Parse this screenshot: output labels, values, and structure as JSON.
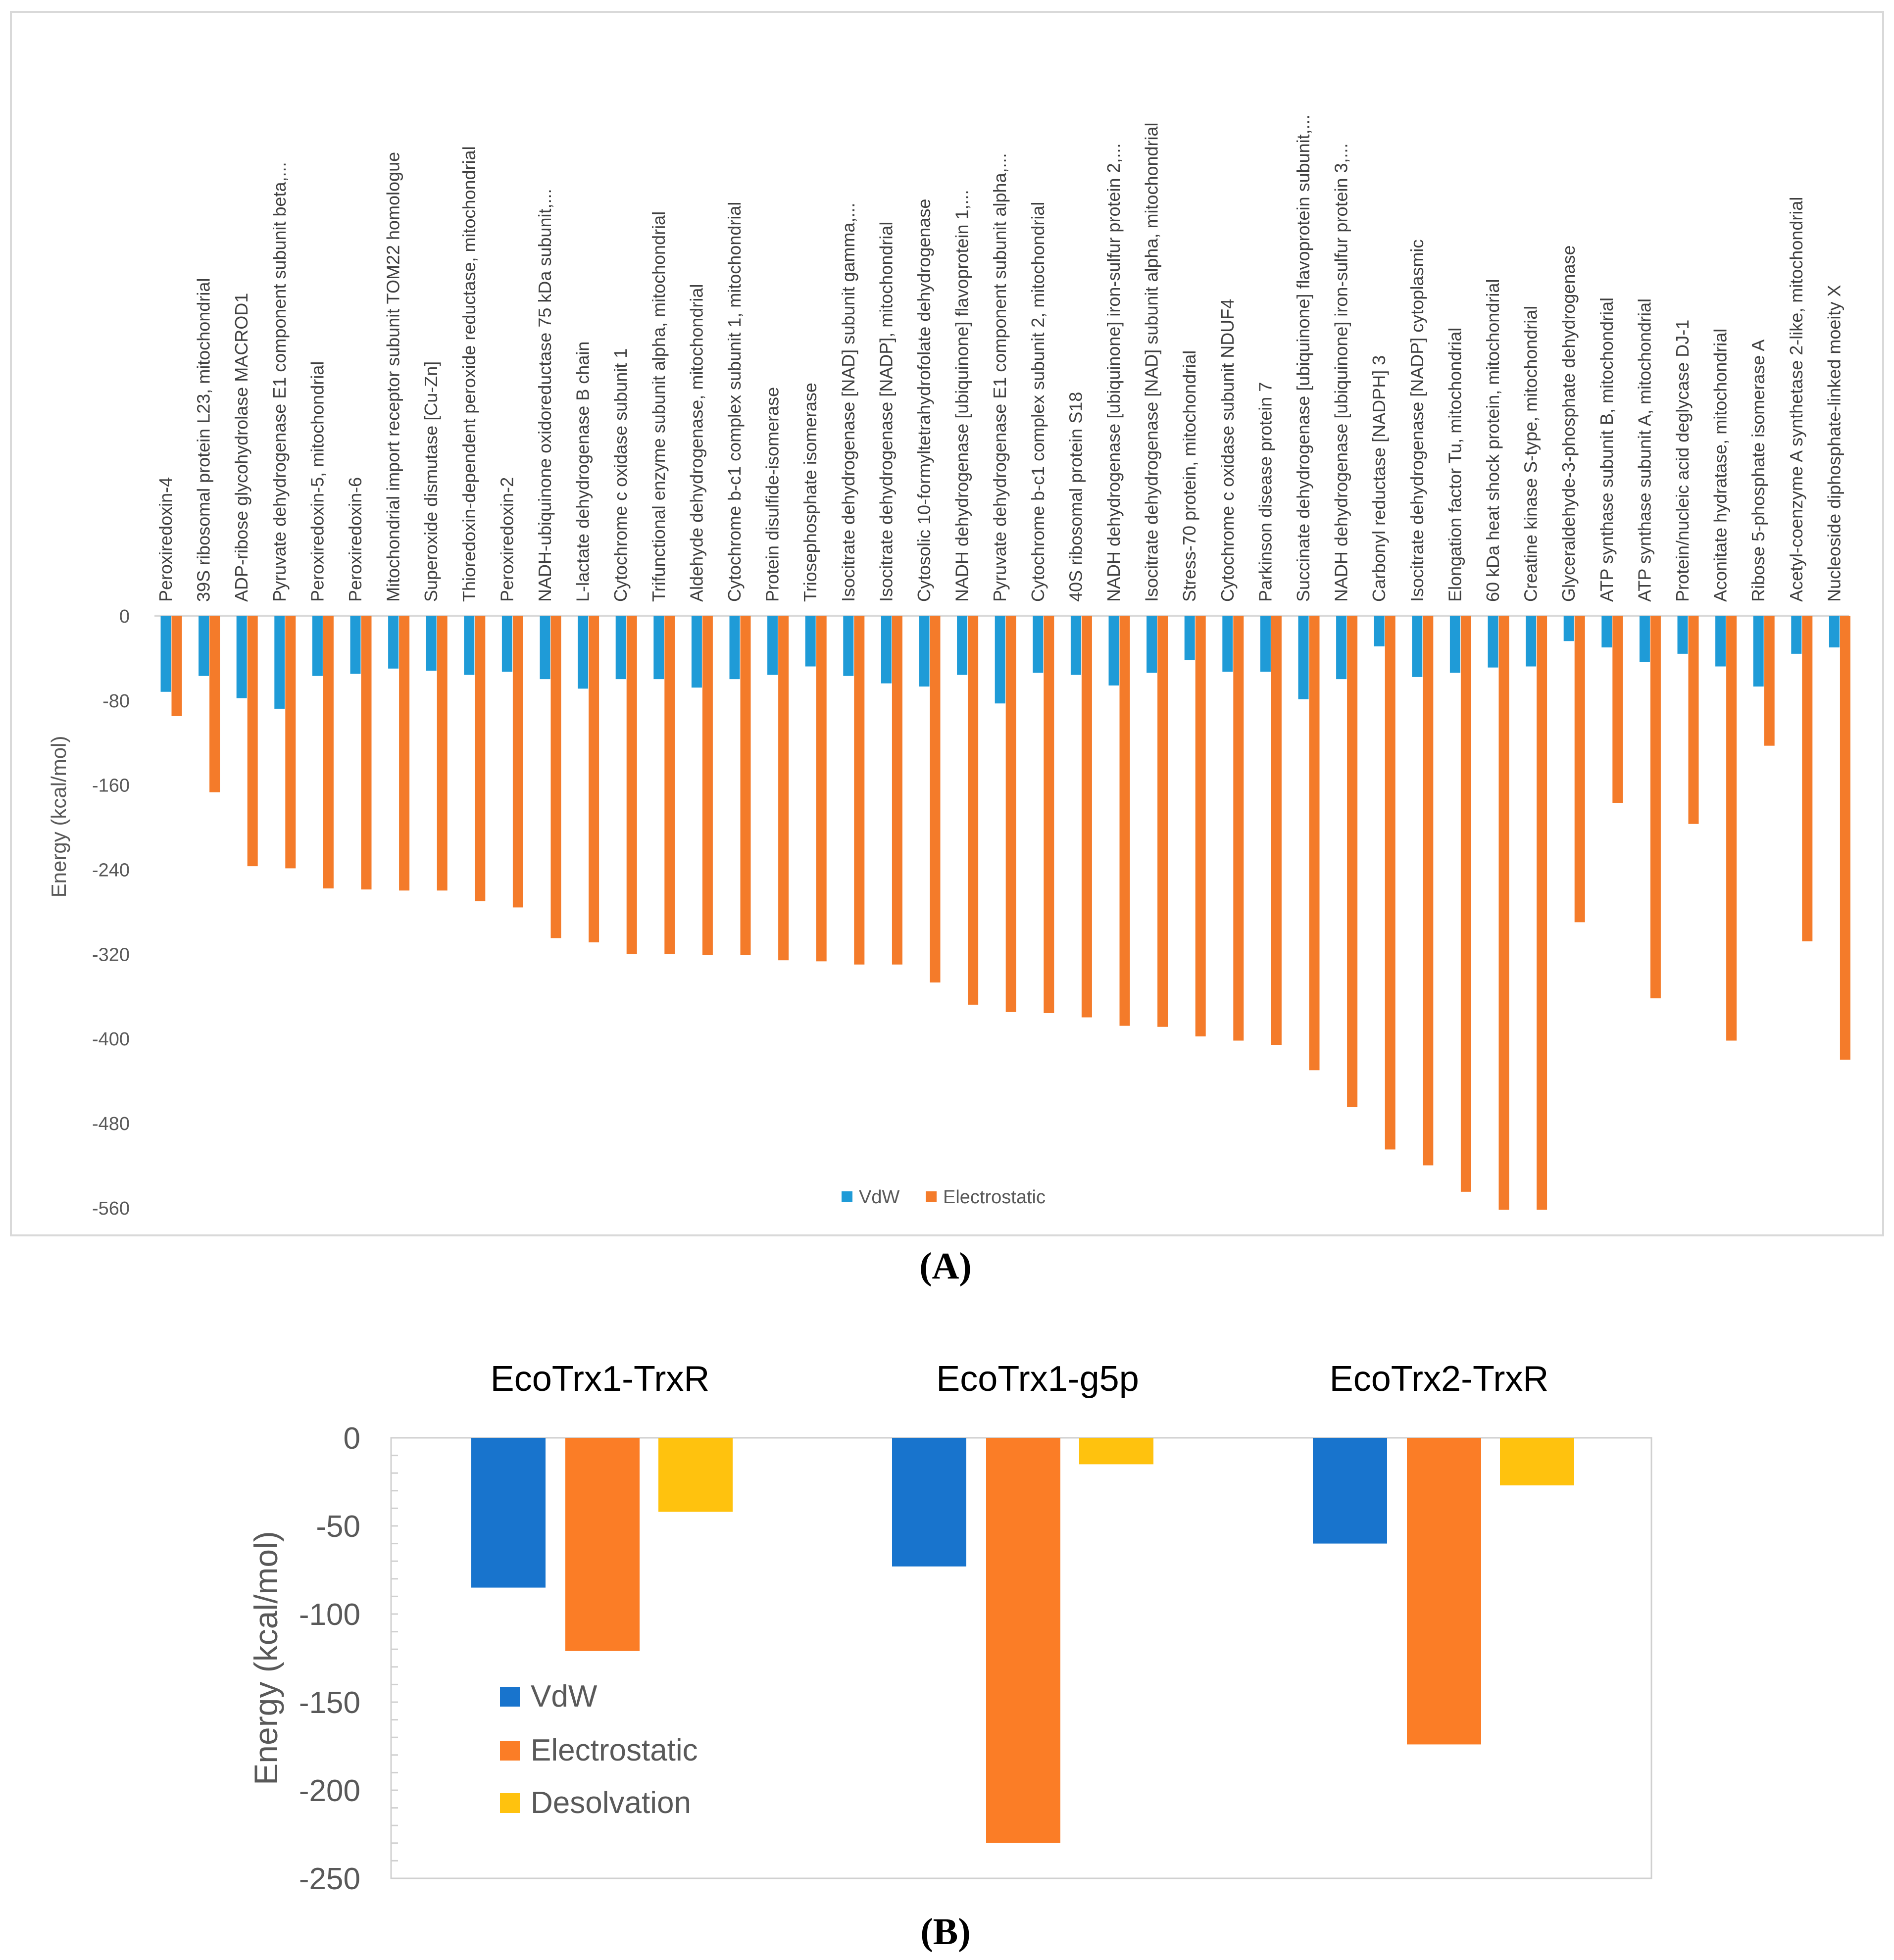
{
  "panel_labels": {
    "a": "(A)",
    "b": "(B)"
  },
  "chart_data": [
    {
      "id": "A",
      "type": "bar",
      "ylabel": "Energy (kcal/mol)",
      "ylim": [
        -560,
        0
      ],
      "yticks": [
        0,
        -80,
        -160,
        -240,
        -320,
        -400,
        -480,
        -560
      ],
      "legend_position": "bottom-center",
      "colors": {
        "VdW": "#1f9bd7",
        "Electrostatic": "#f47b2a"
      },
      "categories": [
        "Peroxiredoxin-4",
        "39S ribosomal protein L23, mitochondrial",
        "ADP-ribose glycohydrolase MACROD1",
        "Pyruvate dehydrogenase E1 component subunit beta,...",
        "Peroxiredoxin-5, mitochondrial",
        "Peroxiredoxin-6",
        "Mitochondrial import receptor subunit TOM22 homologue",
        "Superoxide dismutase [Cu-Zn]",
        "Thioredoxin-dependent peroxide reductase, mitochondrial",
        "Peroxiredoxin-2",
        "NADH-ubiquinone oxidoreductase 75 kDa subunit,...",
        "L-lactate dehydrogenase B chain",
        "Cytochrome c oxidase subunit 1",
        "Trifunctional enzyme subunit alpha, mitochondrial",
        "Aldehyde dehydrogenase, mitochondrial",
        "Cytochrome b-c1 complex subunit 1, mitochondrial",
        "Protein disulfide-isomerase",
        "Triosephosphate isomerase",
        "Isocitrate dehydrogenase [NAD] subunit gamma,...",
        "Isocitrate dehydrogenase [NADP], mitochondrial",
        "Cytosolic 10-formyltetrahydrofolate dehydrogenase",
        "NADH dehydrogenase [ubiquinone] flavoprotein 1,...",
        "Pyruvate dehydrogenase E1 component subunit alpha,...",
        "Cytochrome b-c1 complex subunit 2, mitochondrial",
        "40S ribosomal protein S18",
        "NADH dehydrogenase [ubiquinone] iron-sulfur protein 2,...",
        "Isocitrate dehydrogenase [NAD] subunit alpha, mitochondrial",
        "Stress-70 protein, mitochondrial",
        "Cytochrome c oxidase subunit NDUF4",
        "Parkinson disease protein 7",
        "Succinate dehydrogenase [ubiquinone] flavoprotein subunit,...",
        "NADH dehydrogenase [ubiquinone] iron-sulfur protein 3,...",
        "Carbonyl reductase [NADPH] 3",
        "Isocitrate dehydrogenase [NADP] cytoplasmic",
        "Elongation factor Tu, mitochondrial",
        "60 kDa heat shock protein, mitochondrial",
        "Creatine kinase S-type, mitochondrial",
        "Glyceraldehyde-3-phosphate dehydrogenase",
        "ATP synthase subunit B, mitochondrial",
        "ATP synthase subunit A, mitochondrial",
        "Protein/nucleic acid deglycase DJ-1",
        "Aconitate hydratase, mitochondrial",
        "Ribose 5-phosphate isomerase A",
        "Acetyl-coenzyme A synthetase 2-like, mitochondrial",
        "Nucleoside diphosphate-linked moeity X"
      ],
      "series": [
        {
          "name": "VdW",
          "values": [
            -72,
            -57,
            -78,
            -88,
            -57,
            -55,
            -50,
            -52,
            -56,
            -53,
            -60,
            -69,
            -60,
            -60,
            -68,
            -60,
            -56,
            -48,
            -57,
            -64,
            -67,
            -56,
            -83,
            -54,
            -56,
            -66,
            -54,
            -42,
            -53,
            -53,
            -79,
            -60,
            -29,
            -58,
            -54,
            -49,
            -48,
            -24,
            -30,
            -44,
            -36,
            -48,
            -67,
            -36,
            -30
          ]
        },
        {
          "name": "Electrostatic",
          "values": [
            -95,
            -167,
            -237,
            -239,
            -258,
            -259,
            -260,
            -260,
            -270,
            -276,
            -305,
            -309,
            -320,
            -320,
            -321,
            -321,
            -326,
            -327,
            -330,
            -330,
            -347,
            -368,
            -375,
            -376,
            -380,
            -388,
            -389,
            -398,
            -402,
            -406,
            -430,
            -465,
            -505,
            -520,
            -545,
            -562,
            -562,
            -290,
            -177,
            -362,
            -197,
            -402,
            -123,
            -308,
            -420
          ]
        }
      ]
    },
    {
      "id": "B",
      "type": "bar",
      "ylabel": "Energy (kcal/mol)",
      "ylim": [
        -250,
        0
      ],
      "yticks": [
        0,
        -50,
        -100,
        -150,
        -200,
        -250
      ],
      "legend_position": "left-inside",
      "categories": [
        "EcoTrx1-TrxR",
        "EcoTrx1-g5p",
        "EcoTrx2-TrxR"
      ],
      "colors": {
        "VdW": "#1874cd",
        "Electrostatic": "#fb7d26",
        "Desolvation": "#ffc20e"
      },
      "series": [
        {
          "name": "VdW",
          "values": [
            -85,
            -73,
            -60
          ]
        },
        {
          "name": "Electrostatic",
          "values": [
            -121,
            -230,
            -174
          ]
        },
        {
          "name": "Desolvation",
          "values": [
            -42,
            -15,
            -27
          ]
        }
      ]
    }
  ]
}
